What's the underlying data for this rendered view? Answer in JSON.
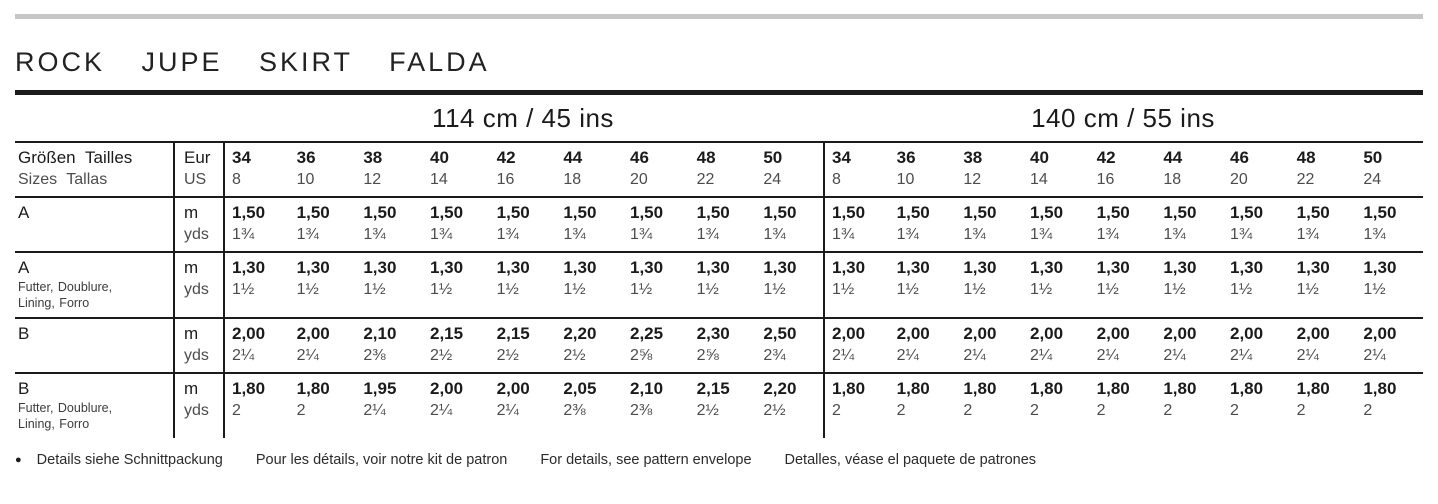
{
  "title": "ROCK JUPE SKIRT FALDA",
  "colors": {
    "top_rule": "#c6c6c6",
    "ink": "#1b1b1b",
    "muted": "#4c4c4c"
  },
  "table": {
    "group_headers": [
      "114 cm / 45 ins",
      "140 cm / 55 ins"
    ],
    "header": {
      "label_line1": "Größen Tailles",
      "label_line2": "Sizes Tallas",
      "unit_top": "Eur",
      "unit_bottom": "US",
      "sizes_eur": [
        "34",
        "36",
        "38",
        "40",
        "42",
        "44",
        "46",
        "48",
        "50",
        "34",
        "36",
        "38",
        "40",
        "42",
        "44",
        "46",
        "48",
        "50"
      ],
      "sizes_us": [
        "8",
        "10",
        "12",
        "14",
        "16",
        "18",
        "20",
        "22",
        "24",
        "8",
        "10",
        "12",
        "14",
        "16",
        "18",
        "20",
        "22",
        "24"
      ]
    },
    "rows": [
      {
        "label": "A",
        "sublabel_lines": [],
        "unit_top": "m",
        "unit_bottom": "yds",
        "top": [
          "1,50",
          "1,50",
          "1,50",
          "1,50",
          "1,50",
          "1,50",
          "1,50",
          "1,50",
          "1,50",
          "1,50",
          "1,50",
          "1,50",
          "1,50",
          "1,50",
          "1,50",
          "1,50",
          "1,50",
          "1,50"
        ],
        "bottom": [
          "1¾",
          "1¾",
          "1¾",
          "1¾",
          "1¾",
          "1¾",
          "1¾",
          "1¾",
          "1¾",
          "1¾",
          "1¾",
          "1¾",
          "1¾",
          "1¾",
          "1¾",
          "1¾",
          "1¾",
          "1¾"
        ]
      },
      {
        "label": "A",
        "sublabel_lines": [
          "Futter, Doublure,",
          "Lining, Forro"
        ],
        "unit_top": "m",
        "unit_bottom": "yds",
        "top": [
          "1,30",
          "1,30",
          "1,30",
          "1,30",
          "1,30",
          "1,30",
          "1,30",
          "1,30",
          "1,30",
          "1,30",
          "1,30",
          "1,30",
          "1,30",
          "1,30",
          "1,30",
          "1,30",
          "1,30",
          "1,30"
        ],
        "bottom": [
          "1½",
          "1½",
          "1½",
          "1½",
          "1½",
          "1½",
          "1½",
          "1½",
          "1½",
          "1½",
          "1½",
          "1½",
          "1½",
          "1½",
          "1½",
          "1½",
          "1½",
          "1½"
        ]
      },
      {
        "label": "B",
        "sublabel_lines": [],
        "unit_top": "m",
        "unit_bottom": "yds",
        "top": [
          "2,00",
          "2,00",
          "2,10",
          "2,15",
          "2,15",
          "2,20",
          "2,25",
          "2,30",
          "2,50",
          "2,00",
          "2,00",
          "2,00",
          "2,00",
          "2,00",
          "2,00",
          "2,00",
          "2,00",
          "2,00"
        ],
        "bottom": [
          "2¼",
          "2¼",
          "2⅜",
          "2½",
          "2½",
          "2½",
          "2⅝",
          "2⅝",
          "2¾",
          "2¼",
          "2¼",
          "2¼",
          "2¼",
          "2¼",
          "2¼",
          "2¼",
          "2¼",
          "2¼"
        ]
      },
      {
        "label": "B",
        "sublabel_lines": [
          "Futter, Doublure,",
          "Lining, Forro"
        ],
        "unit_top": "m",
        "unit_bottom": "yds",
        "top": [
          "1,80",
          "1,80",
          "1,95",
          "2,00",
          "2,00",
          "2,05",
          "2,10",
          "2,15",
          "2,20",
          "1,80",
          "1,80",
          "1,80",
          "1,80",
          "1,80",
          "1,80",
          "1,80",
          "1,80",
          "1,80"
        ],
        "bottom": [
          "2",
          "2",
          "2¼",
          "2¼",
          "2¼",
          "2⅜",
          "2⅜",
          "2½",
          "2½",
          "2",
          "2",
          "2",
          "2",
          "2",
          "2",
          "2",
          "2",
          "2"
        ]
      }
    ]
  },
  "footer": {
    "bullet": "●",
    "notes": [
      "Details siehe Schnittpackung",
      "Pour les détails, voir notre kit de patron",
      "For details, see pattern envelope",
      "Detalles, véase el paquete de patrones"
    ]
  }
}
